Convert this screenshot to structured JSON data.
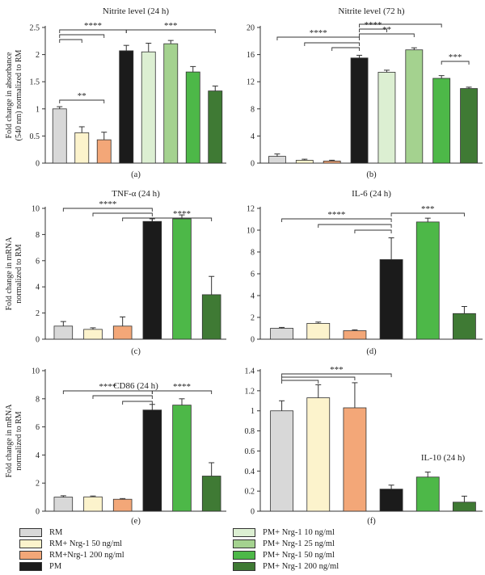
{
  "groups": [
    {
      "key": "rm",
      "label": "RM",
      "color": "#d8d8d8"
    },
    {
      "key": "rm_nrg50",
      "label": "RM+ Nrg-1 50 ng/ml",
      "color": "#fcf3cc"
    },
    {
      "key": "rm_nrg200",
      "label": "RM+Nrg-1 200 ng/ml",
      "color": "#f3a778"
    },
    {
      "key": "pm",
      "label": "PM",
      "color": "#1b1b1b"
    },
    {
      "key": "pm_nrg10",
      "label": "PM+ Nrg-1 10 ng/ml",
      "color": "#dcefd2"
    },
    {
      "key": "pm_nrg25",
      "label": "PM+ Nrg-1 25 ng/ml",
      "color": "#a4d28f"
    },
    {
      "key": "pm_nrg50",
      "label": "PM+ Nrg-1 50 ng/ml",
      "color": "#4db848"
    },
    {
      "key": "pm_nrg200",
      "label": "PM+ Nrg-1 200 ng/ml",
      "color": "#3f7a34"
    }
  ],
  "panel_letters": [
    "(a)",
    "(b)",
    "(c)",
    "(d)",
    "(e)",
    "(f)"
  ],
  "chart_data": [
    {
      "type": "bar",
      "title": "Nitrite level (24 h)",
      "ylabel": "Fold change in absorbance (540 nm) normalized to RM",
      "ylim": [
        0,
        2.5
      ],
      "yticks": [
        0,
        0.5,
        1,
        1.5,
        2,
        2.5
      ],
      "tick_labels": [
        "0",
        "0.5",
        "1",
        "1.5",
        "2",
        "2.5"
      ],
      "categories": [
        "rm",
        "rm_nrg50",
        "rm_nrg200",
        "pm",
        "pm_nrg10",
        "pm_nrg25",
        "pm_nrg50",
        "pm_nrg200"
      ],
      "values": [
        1.0,
        0.56,
        0.43,
        2.07,
        2.05,
        2.2,
        1.68,
        1.33
      ],
      "errors": [
        0.04,
        0.11,
        0.14,
        0.1,
        0.16,
        0.06,
        0.1,
        0.09
      ],
      "significance": [
        {
          "label": "****",
          "from": 0,
          "to": [
            3,
            2,
            1
          ]
        },
        {
          "label": "***",
          "from": 3,
          "to": [
            7
          ]
        },
        {
          "label": "**",
          "from": 0,
          "to": [
            2
          ]
        }
      ]
    },
    {
      "type": "bar",
      "title": "Nitrite level (72 h)",
      "ylabel": "",
      "ylim": [
        0,
        20
      ],
      "yticks": [
        0,
        4,
        8,
        12,
        16,
        20
      ],
      "tick_labels": [
        "0",
        "4",
        "8",
        "12",
        "16",
        "20"
      ],
      "categories": [
        "rm",
        "rm_nrg50",
        "rm_nrg200",
        "pm",
        "pm_nrg10",
        "pm_nrg25",
        "pm_nrg50",
        "pm_nrg200"
      ],
      "values": [
        1.0,
        0.42,
        0.31,
        15.5,
        13.4,
        16.7,
        12.5,
        11.0
      ],
      "errors": [
        0.35,
        0.16,
        0.12,
        0.4,
        0.3,
        0.3,
        0.4,
        0.2
      ],
      "significance": [
        {
          "label": "****",
          "from": 3,
          "to": [
            0,
            1,
            2
          ]
        },
        {
          "label": "****",
          "from": 3,
          "to": [
            4,
            6
          ]
        },
        {
          "label": "**",
          "from": 3,
          "to": [
            5
          ]
        },
        {
          "label": "***",
          "from": 6,
          "to": [
            7
          ]
        }
      ]
    },
    {
      "type": "bar",
      "title": "TNF-α (24 h)",
      "ylabel": "Fold change in mRNA normalized to RM",
      "ylim": [
        0,
        10
      ],
      "yticks": [
        0,
        2,
        4,
        6,
        8,
        10
      ],
      "tick_labels": [
        "0",
        "2",
        "4",
        "6",
        "8",
        "10"
      ],
      "categories": [
        "rm",
        "rm_nrg50",
        "rm_nrg200",
        "pm",
        "pm_nrg50",
        "pm_nrg200"
      ],
      "values": [
        1.0,
        0.75,
        1.0,
        9.0,
        9.2,
        3.4
      ],
      "errors": [
        0.35,
        0.12,
        0.7,
        0.2,
        0.3,
        1.4
      ],
      "significance": [
        {
          "label": "****",
          "from": 3,
          "to": [
            0,
            1,
            2
          ]
        },
        {
          "label": "****",
          "from": 3,
          "to": [
            5
          ]
        }
      ]
    },
    {
      "type": "bar",
      "title": "IL-6 (24 h)",
      "ylabel": "",
      "ylim": [
        0,
        12
      ],
      "yticks": [
        0,
        2,
        4,
        6,
        8,
        10,
        12
      ],
      "tick_labels": [
        "0",
        "2",
        "4",
        "6",
        "8",
        "10",
        "12"
      ],
      "categories": [
        "rm",
        "rm_nrg50",
        "rm_nrg200",
        "pm",
        "pm_nrg50",
        "pm_nrg200"
      ],
      "values": [
        1.0,
        1.45,
        0.78,
        7.3,
        10.75,
        2.35
      ],
      "errors": [
        0.08,
        0.12,
        0.08,
        2.0,
        0.35,
        0.65
      ],
      "significance": [
        {
          "label": "****",
          "from": 3,
          "to": [
            0,
            1,
            2
          ]
        },
        {
          "label": "***",
          "from": 3,
          "to": [
            5
          ]
        }
      ]
    },
    {
      "type": "bar",
      "title": "CD86 (24 h)",
      "ylabel": "Fold change in mRNA normalized to RM",
      "ylim": [
        0,
        10
      ],
      "yticks": [
        0,
        2,
        4,
        6,
        8,
        10
      ],
      "tick_labels": [
        "0",
        "2",
        "4",
        "6",
        "8",
        "10"
      ],
      "categories": [
        "rm",
        "rm_nrg50",
        "rm_nrg200",
        "pm",
        "pm_nrg50",
        "pm_nrg200"
      ],
      "values": [
        1.0,
        1.02,
        0.85,
        7.2,
        7.55,
        2.5
      ],
      "errors": [
        0.1,
        0.06,
        0.05,
        0.4,
        0.45,
        0.95
      ],
      "significance": [
        {
          "label": "****",
          "from": 3,
          "to": [
            0,
            1,
            2
          ]
        },
        {
          "label": "****",
          "from": 3,
          "to": [
            5
          ]
        }
      ]
    },
    {
      "type": "bar",
      "title": "IL-10 (24 h)",
      "ylabel": "",
      "ylim": [
        0,
        1.4
      ],
      "yticks": [
        0,
        0.2,
        0.4,
        0.6,
        0.8,
        1,
        1.2,
        1.4
      ],
      "tick_labels": [
        "0",
        "0.2",
        "0.4",
        "0.6",
        "0.8",
        "1",
        "1.2",
        "1.4"
      ],
      "categories": [
        "rm",
        "rm_nrg50",
        "rm_nrg200",
        "pm",
        "pm_nrg50",
        "pm_nrg200"
      ],
      "values": [
        1.0,
        1.13,
        1.03,
        0.22,
        0.34,
        0.09
      ],
      "errors": [
        0.1,
        0.13,
        0.25,
        0.04,
        0.05,
        0.06
      ],
      "significance": [
        {
          "label": "***",
          "from": 0,
          "to": [
            3,
            2,
            1
          ]
        }
      ]
    }
  ]
}
